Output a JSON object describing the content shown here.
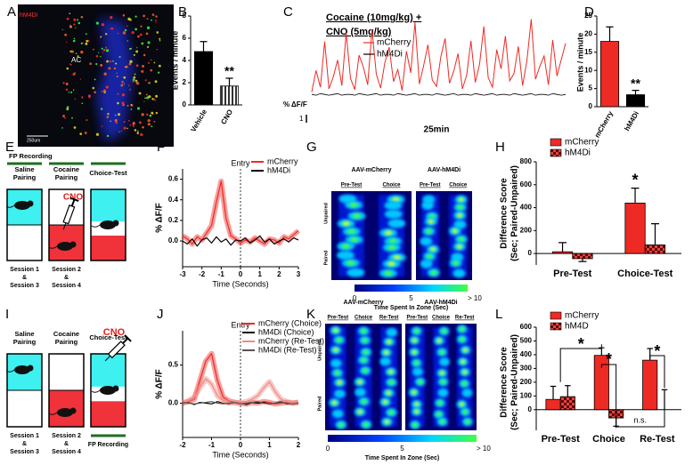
{
  "panel_labels": [
    "A",
    "B",
    "C",
    "D",
    "E",
    "F",
    "G",
    "H",
    "I",
    "J",
    "K",
    "L"
  ],
  "image_a": {
    "labels": [
      "hM4Di",
      "AC",
      "250um"
    ]
  },
  "diagram_e": {
    "recording": "FP Recording",
    "stages": [
      [
        "Saline",
        "Pairing"
      ],
      [
        "Cocaine",
        "Pairing"
      ],
      [
        "Choice-Test"
      ]
    ],
    "drug": "CNO",
    "sessions": [
      [
        "Session 1",
        "&",
        "Session 3"
      ],
      [
        "Session 2",
        "&",
        "Session 4"
      ]
    ]
  },
  "heatmap_g": {
    "groups": [
      {
        "name": "AAV-mCherry",
        "columns": [
          "Pre-Test",
          "Choice"
        ]
      },
      {
        "name": "AAV-hM4Di",
        "columns": [
          "Pre-Test",
          "Choice"
        ]
      }
    ],
    "rows": [
      "Unpaired",
      "Paired"
    ],
    "colorbar": {
      "ticks": [
        "0",
        "5",
        "> 10"
      ],
      "label": "Time Spent In Zone (Sec)"
    }
  },
  "diagram_i": {
    "recording": "FP Recording",
    "stages": [
      [
        "Saline",
        "Pairing"
      ],
      [
        "Cocaine",
        "Pairing"
      ],
      [
        "Choice-Test"
      ]
    ],
    "drug": "CNO",
    "sessions": [
      [
        "Session 1",
        "&",
        "Session 3"
      ],
      [
        "Session 2",
        "&",
        "Session 4"
      ]
    ]
  },
  "heatmap_k": {
    "groups": [
      {
        "name": "AAV-mCherry",
        "columns": [
          "Pre-Test",
          "Choice",
          "Re-Test"
        ]
      },
      {
        "name": "AAV-hM4Di",
        "columns": [
          "Pre-Test",
          "Choice",
          "Re-Test"
        ]
      }
    ],
    "rows": [
      "Unpaired",
      "Paired"
    ],
    "colorbar": {
      "ticks": [
        "0",
        "5",
        "> 10"
      ],
      "label": "Time Spent In Zone (Sec)"
    }
  },
  "chart_data": [
    {
      "type": "bar",
      "ylabel": "Events / minute",
      "categories": [
        "Vehicle",
        "CNO"
      ],
      "values": [
        4.8,
        1.7
      ],
      "errors": [
        0.9,
        0.7
      ],
      "colors": [
        "#000000",
        "#000000"
      ],
      "patterns": [
        "solid",
        "stripes"
      ],
      "ylim": [
        0,
        8
      ],
      "yticks": [
        0,
        2,
        4,
        6,
        8
      ],
      "annotations": [
        "**"
      ]
    },
    {
      "type": "trace",
      "title": [
        "Cocaine (10mg/kg) +",
        "CNO (5mg/kg)"
      ],
      "scale_bar": {
        "label": "% ΔF/F",
        "value": 1
      },
      "duration_label": "25min",
      "series": [
        {
          "name": "mCherry",
          "color": "#ee2a24",
          "values": [
            0.5,
            3.2,
            1.1,
            6.8,
            0.9,
            2.4,
            4.5,
            1.3,
            7.9,
            2.2,
            0.8,
            5.1,
            3.6,
            1.4,
            8.3,
            2.7,
            1.0,
            4.2,
            6.1,
            1.8,
            3.3,
            0.7,
            5.6,
            2.9,
            9.2,
            1.5,
            3.8,
            6.4,
            2.0,
            1.2,
            4.9,
            7.2,
            1.6,
            3.1,
            5.3,
            0.9,
            2.6,
            6.9,
            1.7,
            4.0,
            8.7,
            2.3,
            1.1,
            5.8,
            3.4,
            7.5,
            1.9,
            2.8,
            6.2,
            1.3,
            4.4,
            9.6,
            2.1,
            3.7,
            5.0,
            1.4,
            7.0,
            2.5,
            4.6,
            6.6
          ]
        },
        {
          "name": "hM4Di",
          "color": "#000000",
          "values": [
            0.2,
            0.1,
            0.3,
            0.2,
            0.1,
            0.2,
            0.3,
            0.1,
            0.2,
            0.2,
            0.1,
            0.3,
            0.2,
            0.1,
            0.2,
            0.3,
            0.1,
            0.2,
            0.2,
            0.1,
            0.3,
            0.2,
            0.1,
            0.2,
            0.3,
            0.1,
            0.2,
            0.2,
            0.1,
            0.3,
            0.2,
            0.1,
            0.2,
            0.3,
            0.1,
            0.2,
            0.2,
            0.1,
            0.3,
            0.2,
            0.1,
            0.2,
            0.3,
            0.1,
            0.2,
            0.2,
            0.1,
            0.3,
            0.2,
            0.1,
            0.2,
            0.3,
            0.1,
            0.2,
            0.2,
            0.1,
            0.3,
            0.2,
            0.1,
            0.2
          ]
        }
      ]
    },
    {
      "type": "bar",
      "ylabel": "Events / minute",
      "categories": [
        "mCherry",
        "hM4Di"
      ],
      "values": [
        18,
        3.3
      ],
      "errors": [
        4,
        1.2
      ],
      "colors": [
        "#ee2a24",
        "#000000"
      ],
      "patterns": [
        "solid",
        "solid"
      ],
      "ylim": [
        0,
        25
      ],
      "yticks": [
        0,
        5,
        10,
        15,
        20,
        25
      ],
      "annotations": [
        "**"
      ]
    },
    {
      "type": "line",
      "ylabel": "% ΔF/F",
      "xlabel": "Time (Seconds)",
      "annotation": {
        "text": "Entry",
        "x": 0
      },
      "x": [
        -3,
        -2.75,
        -2.5,
        -2.25,
        -2,
        -1.75,
        -1.5,
        -1.25,
        -1,
        -0.75,
        -0.5,
        -0.25,
        0,
        0.25,
        0.5,
        0.75,
        1,
        1.25,
        1.5,
        1.75,
        2,
        2.25,
        2.5,
        2.75,
        3
      ],
      "series": [
        {
          "name": "mCherry",
          "color": "#ee2a24",
          "band": true,
          "values": [
            0.05,
            0.02,
            -0.03,
            0.04,
            0.01,
            0.08,
            0.15,
            0.38,
            0.58,
            0.22,
            0.05,
            0.02,
            -0.02,
            0.01,
            -0.01,
            0.03,
            0.0,
            -0.03,
            0.02,
            0.01,
            -0.02,
            0.04,
            0.02,
            0.06,
            0.1
          ]
        },
        {
          "name": "hM4Di",
          "color": "#000000",
          "band": false,
          "values": [
            0.0,
            -0.03,
            0.02,
            -0.05,
            0.01,
            0.03,
            -0.02,
            0.04,
            -0.01,
            0.02,
            -0.04,
            0.01,
            0.0,
            0.03,
            -0.02,
            0.01,
            0.05,
            -0.01,
            0.02,
            -0.03,
            0.0,
            0.02,
            -0.01,
            0.03,
            0.01
          ]
        }
      ],
      "xlim": [
        -3,
        3
      ],
      "xticks": [
        -3,
        -2,
        -1,
        0,
        1,
        2,
        3
      ],
      "ylim": [
        -0.25,
        0.7
      ],
      "yticks": [
        {
          "value": 0,
          "label": "0.0"
        },
        0.2,
        0.4,
        0.6
      ]
    },
    {
      "type": "bar",
      "ylabel": [
        "Difference Score",
        "(Sec; Paired-Unpaired)"
      ],
      "categories": [
        "Pre-Test",
        "Choice-Test"
      ],
      "series": [
        {
          "name": "mCherry",
          "color": "#ee2a24",
          "pattern": "solid",
          "values": [
            15,
            440
          ],
          "errors": [
            80,
            130
          ]
        },
        {
          "name": "hM4Di",
          "color": "#8b1a16",
          "pattern": "checker",
          "values": [
            -45,
            75
          ],
          "errors": [
            25,
            185
          ]
        }
      ],
      "ylim": [
        -100,
        800
      ],
      "yticks": [
        0,
        200,
        400,
        600,
        800
      ],
      "annotations": [
        "*"
      ]
    },
    {
      "type": "line",
      "ylabel": "% ΔF/F",
      "xlabel": "Time (Seconds)",
      "annotation": {
        "text": "Entry",
        "x": 0
      },
      "x": [
        -2,
        -1.8,
        -1.6,
        -1.4,
        -1.2,
        -1,
        -0.8,
        -0.6,
        -0.4,
        -0.2,
        0,
        0.2,
        0.4,
        0.6,
        0.8,
        1,
        1.2,
        1.4,
        1.6,
        1.8,
        2
      ],
      "series": [
        {
          "name": "mCherry (Choice)",
          "color": "#ee2a24",
          "band": true,
          "values": [
            0.0,
            0.02,
            0.05,
            0.3,
            0.55,
            0.65,
            0.3,
            0.08,
            0.03,
            0.01,
            0.0,
            -0.01,
            0.01,
            0.0,
            0.02,
            0.01,
            -0.01,
            0.0,
            0.01,
            0.0,
            0.01
          ]
        },
        {
          "name": "hM4Di (Choice)",
          "color": "#000000",
          "band": false,
          "values": [
            0.0,
            0.01,
            -0.02,
            0.01,
            0.0,
            -0.01,
            0.02,
            0.0,
            -0.01,
            0.01,
            0.0,
            -0.02,
            0.01,
            0.0,
            0.01,
            -0.01,
            0.0,
            0.02,
            -0.01,
            0.0,
            0.01
          ]
        },
        {
          "name": "mCherry (Re-Test)",
          "color": "#f08a86",
          "band": true,
          "values": [
            0.0,
            0.03,
            0.08,
            0.2,
            0.32,
            0.25,
            0.1,
            0.03,
            0.0,
            0.01,
            0.0,
            0.02,
            0.05,
            0.1,
            0.2,
            0.28,
            0.15,
            0.05,
            0.02,
            0.0,
            0.01
          ]
        },
        {
          "name": "hM4Di (Re-Test)",
          "color": "#555555",
          "band": false,
          "values": [
            0.01,
            0.0,
            -0.01,
            0.0,
            0.01,
            0.02,
            0.0,
            -0.01,
            0.0,
            0.01,
            -0.01,
            0.0,
            0.01,
            0.02,
            0.0,
            -0.01,
            0.0,
            0.01,
            0.0,
            -0.01,
            0.0
          ]
        }
      ],
      "xlim": [
        -2,
        2
      ],
      "xticks": [
        -2,
        -1,
        0,
        1,
        2
      ],
      "ylim": [
        -0.45,
        0.95
      ],
      "yticks": [
        {
          "value": 0,
          "label": "0.0"
        },
        0.5
      ]
    },
    {
      "type": "bar",
      "ylabel": [
        "Difference Score",
        "(Sec; Paired-Unpaired)"
      ],
      "categories": [
        "Pre-Test",
        "Choice",
        "Re-Test"
      ],
      "series": [
        {
          "name": "mCherry",
          "color": "#ee2a24",
          "pattern": "solid",
          "values": [
            75,
            395,
            360
          ],
          "errors": [
            95,
            55,
            85
          ]
        },
        {
          "name": "hM4D",
          "color": "#8b1a16",
          "pattern": "checker",
          "values": [
            95,
            -60,
            0
          ],
          "errors": [
            80,
            60,
            145
          ]
        }
      ],
      "ylim": [
        -150,
        600
      ],
      "yticks": [
        0,
        100,
        200,
        300,
        400,
        500,
        600
      ],
      "annotations": [
        "*",
        "*",
        "*",
        "n.s."
      ]
    }
  ]
}
